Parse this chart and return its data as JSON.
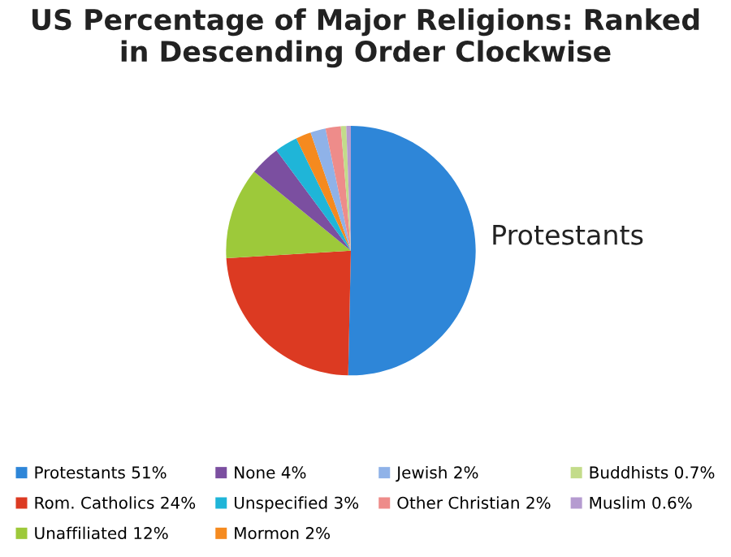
{
  "chart_data": {
    "type": "pie",
    "title": "US Percentage of Major Religions: Ranked\nin Descending Order Clockwise",
    "categories": [
      "Protestants",
      "Rom. Catholics",
      "Unaffiliated",
      "None",
      "Unspecified",
      "Mormon",
      "Jewish",
      "Other Christian",
      "Buddhists",
      "Muslim"
    ],
    "values": [
      51,
      24,
      12,
      4,
      3,
      2,
      2,
      2,
      0.7,
      0.6
    ],
    "value_labels": [
      "51%",
      "24%",
      "12%",
      "4%",
      "3%",
      "2%",
      "2%",
      "2%",
      "0.7%",
      "0.6%"
    ],
    "colors": [
      "#2e86d8",
      "#dc3a22",
      "#9dc93a",
      "#7b4fa0",
      "#1fb5d8",
      "#f58a1f",
      "#8fb2e8",
      "#ee8c8a",
      "#c3dc8a",
      "#b59bd0"
    ],
    "annotations": [
      "Protestants"
    ],
    "legend": "bottom"
  }
}
